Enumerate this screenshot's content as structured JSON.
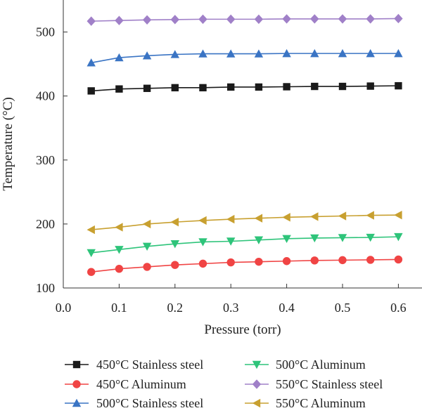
{
  "chart_data": {
    "type": "line",
    "xlabel": "Pressure (torr)",
    "ylabel": "Temperature (°C)",
    "xlim": [
      0.0,
      0.65
    ],
    "ylim": [
      100,
      560
    ],
    "x_ticks": [
      0.0,
      0.1,
      0.2,
      0.3,
      0.4,
      0.5,
      0.6
    ],
    "x_tick_labels": [
      "0.0",
      "0.1",
      "0.2",
      "0.3",
      "0.4",
      "0.5",
      "0.6"
    ],
    "y_ticks": [
      100,
      200,
      300,
      400,
      500
    ],
    "y_tick_labels": [
      "100",
      "200",
      "300",
      "400",
      "500"
    ],
    "grid": false,
    "legend_position": "bottom",
    "x": [
      0.05,
      0.1,
      0.15,
      0.2,
      0.25,
      0.3,
      0.35,
      0.4,
      0.45,
      0.5,
      0.55,
      0.6
    ],
    "series": [
      {
        "name": "450°C Stainless steel",
        "color": "#1a1a1a",
        "marker": "square",
        "values": [
          408,
          411,
          412,
          413,
          413,
          414,
          414,
          414.5,
          415,
          415,
          415.5,
          416
        ]
      },
      {
        "name": "450°C Aluminum",
        "color": "#f04444",
        "marker": "circle",
        "values": [
          125,
          130,
          133,
          136,
          138,
          140,
          141,
          142,
          143,
          143.5,
          144,
          144.5
        ]
      },
      {
        "name": "500°C Stainless steel",
        "color": "#3a74c4",
        "marker": "triangle-up",
        "values": [
          452,
          460,
          463,
          465,
          466,
          466,
          466,
          466.5,
          466.5,
          466.5,
          466.5,
          466.5
        ]
      },
      {
        "name": "500°C Aluminum",
        "color": "#2ec47a",
        "marker": "triangle-down",
        "values": [
          155,
          160,
          165,
          169,
          172,
          173,
          175,
          177,
          178,
          178.5,
          179,
          180
        ]
      },
      {
        "name": "550°C Stainless steel",
        "color": "#a080c8",
        "marker": "diamond",
        "values": [
          517,
          518,
          519,
          519.5,
          520,
          520,
          520,
          520.5,
          520.5,
          520.5,
          520.5,
          521
        ]
      },
      {
        "name": "550°C Aluminum",
        "color": "#c8a030",
        "marker": "triangle-left",
        "values": [
          191,
          195,
          200,
          203,
          205.5,
          207.5,
          209,
          210.5,
          211.5,
          212.5,
          213.5,
          214
        ]
      }
    ]
  }
}
